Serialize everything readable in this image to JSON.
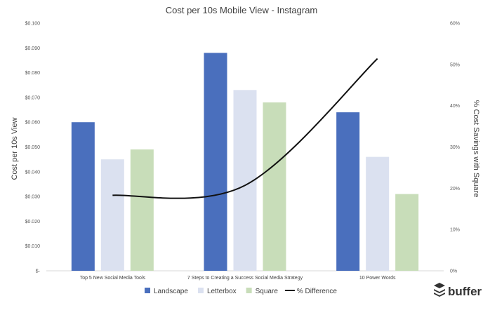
{
  "chart_data": {
    "type": "bar",
    "title": "Cost per 10s Mobile View - Instagram",
    "ylabel": "Cost per 10s View",
    "y2label": "% Cost Savings with Square",
    "categories": [
      "Top 5 New Social Media Tools",
      "7 Steps to Creating a Success Social Media Strategy",
      "10 Power Words"
    ],
    "ylim": [
      0,
      0.1
    ],
    "y2lim": [
      0,
      0.6
    ],
    "y_ticks": [
      "$-",
      "$0.010",
      "$0.020",
      "$0.030",
      "$0.040",
      "$0.050",
      "$0.060",
      "$0.070",
      "$0.080",
      "$0.090",
      "$0.100"
    ],
    "y2_ticks": [
      "0%",
      "10%",
      "20%",
      "30%",
      "40%",
      "50%",
      "60%"
    ],
    "series": [
      {
        "name": "Landscape",
        "type": "bar",
        "axis": "left",
        "color": "#4a6fbd",
        "values": [
          0.06,
          0.088,
          0.064
        ]
      },
      {
        "name": "Letterbox",
        "type": "bar",
        "axis": "left",
        "color": "#dbe1f0",
        "values": [
          0.045,
          0.073,
          0.046
        ]
      },
      {
        "name": "Square",
        "type": "bar",
        "axis": "left",
        "color": "#c8ddb9",
        "values": [
          0.049,
          0.068,
          0.031
        ]
      },
      {
        "name": "% Difference",
        "type": "line",
        "axis": "right",
        "color": "#111111",
        "values": [
          0.183,
          0.207,
          0.514
        ]
      }
    ],
    "grid": false,
    "legend_position": "bottom"
  },
  "brand": {
    "name": "buffer",
    "icon": "buffer-stack-icon"
  }
}
